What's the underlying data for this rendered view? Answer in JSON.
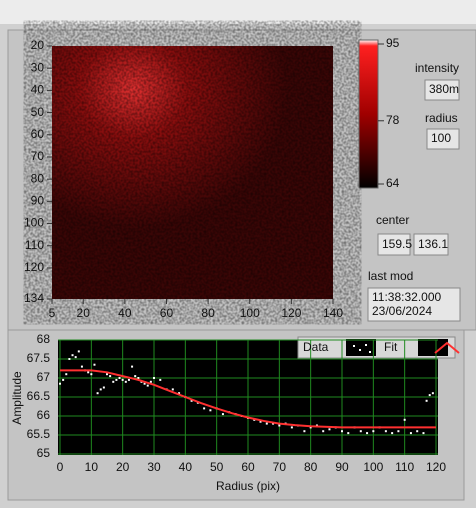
{
  "image_graph": {
    "type": "image",
    "xlim": [
      5,
      140
    ],
    "ylim": [
      20,
      134
    ],
    "xticks": [
      5,
      20,
      40,
      60,
      80,
      100,
      120,
      140
    ],
    "yticks": [
      20,
      30,
      40,
      50,
      60,
      70,
      80,
      90,
      100,
      110,
      120,
      134
    ],
    "colorbar": {
      "lim": [
        64,
        95
      ],
      "ticks": [
        95,
        78,
        64
      ]
    }
  },
  "controls": {
    "intensity": {
      "label": "intensity",
      "value": "380m"
    },
    "radius": {
      "label": "radius",
      "value": "100"
    },
    "center": {
      "label": "center",
      "x": "159.5",
      "y": "136.1"
    },
    "last_mod": {
      "label": "last mod",
      "time": "11:38:32.000",
      "date": "23/06/2024"
    }
  },
  "chart_data": {
    "type": "scatter",
    "xlabel": "Radius (pix)",
    "ylabel": "Amplitude",
    "xlim": [
      0,
      120
    ],
    "ylim": [
      65,
      68
    ],
    "xticks": [
      0,
      10,
      20,
      30,
      40,
      50,
      60,
      70,
      80,
      90,
      100,
      110,
      120
    ],
    "yticks": [
      65,
      65.5,
      66,
      66.5,
      67,
      67.5,
      68
    ],
    "grid": true,
    "series": [
      {
        "name": "Data",
        "color": "#ffffff",
        "style": "points",
        "x": [
          0,
          1,
          2,
          3,
          4,
          5,
          6,
          7,
          8,
          9,
          10,
          11,
          12,
          13,
          14,
          15,
          16,
          17,
          18,
          19,
          20,
          21,
          22,
          23,
          24,
          25,
          26,
          27,
          28,
          29,
          30,
          32,
          34,
          36,
          38,
          40,
          42,
          44,
          46,
          48,
          50,
          52,
          54,
          56,
          58,
          60,
          62,
          64,
          66,
          68,
          70,
          72,
          74,
          76,
          78,
          80,
          82,
          84,
          86,
          88,
          90,
          92,
          94,
          96,
          98,
          100,
          102,
          104,
          106,
          108,
          110,
          112,
          114,
          116,
          117,
          118,
          119
        ],
        "values": [
          66.85,
          66.95,
          67.1,
          67.5,
          67.6,
          67.55,
          67.7,
          67.3,
          67.2,
          67.15,
          67.1,
          67.35,
          66.6,
          66.7,
          66.75,
          67.1,
          67.05,
          66.9,
          66.95,
          67.0,
          66.95,
          66.9,
          66.95,
          67.3,
          67.05,
          67.0,
          66.9,
          66.85,
          66.8,
          66.9,
          67.0,
          66.95,
          66.7,
          66.7,
          66.6,
          66.5,
          66.4,
          66.35,
          66.2,
          66.15,
          66.2,
          66.05,
          66.1,
          66.05,
          66.0,
          65.95,
          65.9,
          65.85,
          65.8,
          65.8,
          65.75,
          65.8,
          65.7,
          65.75,
          65.6,
          65.7,
          65.75,
          65.6,
          65.65,
          65.7,
          65.6,
          65.55,
          65.7,
          65.6,
          65.55,
          65.6,
          65.7,
          65.6,
          65.55,
          65.6,
          65.9,
          65.55,
          65.6,
          65.55,
          66.4,
          66.55,
          66.6
        ]
      },
      {
        "name": "Fit",
        "color": "#ff3030",
        "style": "line",
        "x": [
          0,
          5,
          10,
          15,
          20,
          25,
          30,
          35,
          40,
          45,
          50,
          55,
          60,
          65,
          70,
          75,
          80,
          90,
          100,
          110,
          120
        ],
        "values": [
          67.2,
          67.2,
          67.2,
          67.15,
          67.05,
          66.95,
          66.82,
          66.66,
          66.5,
          66.34,
          66.2,
          66.07,
          65.96,
          65.87,
          65.8,
          65.76,
          65.73,
          65.7,
          65.7,
          65.7,
          65.7
        ]
      }
    ]
  }
}
